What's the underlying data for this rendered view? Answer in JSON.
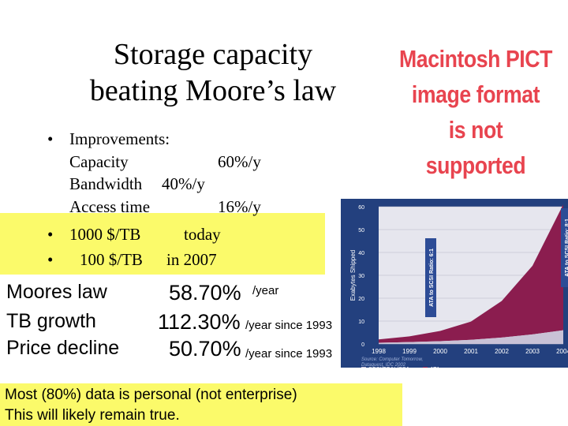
{
  "slide": {
    "title_line1": "Storage capacity",
    "title_line2": "beating Moore’s law",
    "pict_notice": [
      "Macintosh PICT",
      "image format",
      "is not supported"
    ],
    "bullets": {
      "improvements": "Improvements:",
      "capacity_label": "Capacity",
      "capacity_value": "60%/y",
      "bandwidth_label": "Bandwidth",
      "bandwidth_value": "40%/y",
      "access_label": "Access time",
      "access_value": "16%/y",
      "b2_price": "1000 $/TB",
      "b2_when": "today",
      "b3_price": "100 $/TB",
      "b3_when": "in 2007"
    },
    "stats": [
      {
        "label": "Moores law",
        "value": "58.70%",
        "unit": "/year"
      },
      {
        "label": "TB growth",
        "value": "112.30%",
        "unit": "/year since 1993"
      },
      {
        "label": "Price decline",
        "value": "50.70%",
        "unit": "/year since 1993"
      }
    ],
    "note_line1": "Most (80%) data is personal (not enterprise)",
    "note_line2": "This will likely remain true.",
    "colors": {
      "pict_red": "#e8444f",
      "highlight": "#fbfa6a",
      "chart_bg": "#23407e",
      "ata": "#8b1d4f",
      "scsi": "#c9c2d6"
    }
  },
  "chart_data": {
    "type": "area",
    "x": [
      "1998",
      "1999",
      "2000",
      "2001",
      "2002",
      "2003",
      "2004"
    ],
    "series": [
      {
        "name": "SCSI/FCAL/SSA",
        "values": [
          0.5,
          0.8,
          1.2,
          1.8,
          2.8,
          4.2,
          6.0
        ]
      },
      {
        "name": "ATA",
        "values": [
          1.5,
          2.5,
          4.5,
          8.0,
          16.0,
          30.0,
          55.0
        ]
      }
    ],
    "ylabel": "Exabytes Shipped",
    "yticks": [
      "0",
      "10",
      "20",
      "30",
      "40",
      "50",
      "60"
    ],
    "ylim": [
      0,
      60
    ],
    "annotations": [
      "ATA to SCSI Ratio: 6:1",
      "ATA to SCSI Ratio: 8:1"
    ],
    "source": [
      "Source: Computer Tomorrow,",
      "Dataquest, IDC 2002"
    ],
    "stacked": true,
    "grid": true,
    "legend_placement": "bottom"
  }
}
